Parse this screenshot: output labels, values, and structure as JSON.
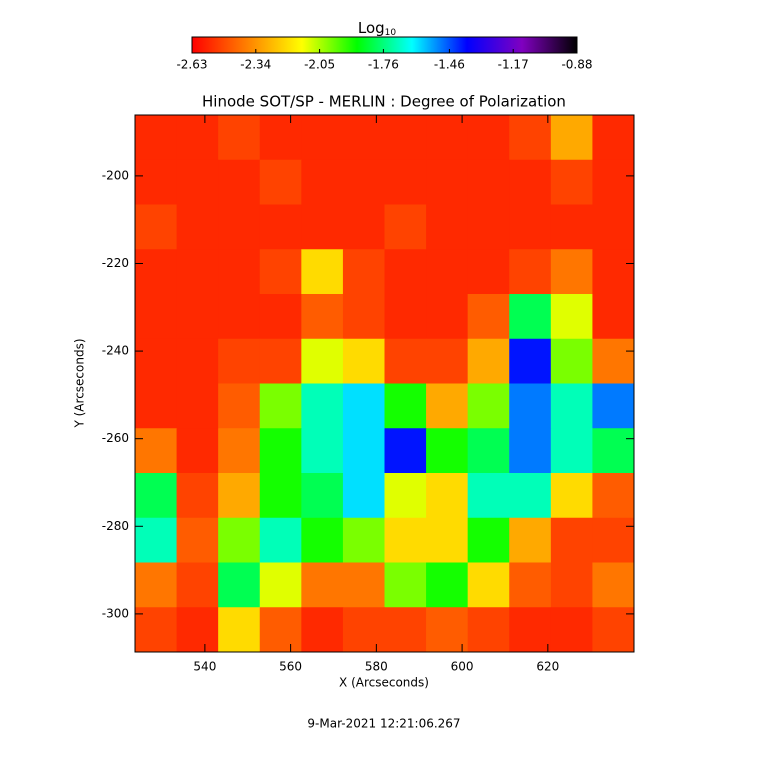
{
  "chart_data": {
    "type": "heatmap",
    "title": "Hinode SOT/SP - MERLIN : Degree of Polarization",
    "x_label": "X (Arcseconds)",
    "y_label": "Y (Arcseconds)",
    "colorbar_label": "Log",
    "colorbar_label_subscript": "10",
    "footer": "9-Mar-2021 12:21:06.267",
    "xlim": [
      523.7,
      640.1
    ],
    "ylim": [
      -308.7,
      -186.1
    ],
    "xticks": [
      540,
      560,
      580,
      600,
      620
    ],
    "yticks": [
      -300,
      -280,
      -260,
      -240,
      -220,
      -200
    ],
    "zlim": [
      -2.63,
      -0.88
    ],
    "zticks": [
      -2.63,
      -2.34,
      -2.05,
      -1.76,
      -1.46,
      -1.17,
      -0.88
    ],
    "colormap": [
      "#ff0000",
      "#ff8000",
      "#ffff00",
      "#00ff00",
      "#00ffff",
      "#0000ff",
      "#8000c0",
      "#000000"
    ],
    "z": [
      [
        -2.55,
        -2.55,
        -2.5,
        -2.55,
        -2.55,
        -2.55,
        -2.55,
        -2.55,
        -2.55,
        -2.5,
        -2.3,
        -2.55
      ],
      [
        -2.55,
        -2.55,
        -2.55,
        -2.5,
        -2.55,
        -2.55,
        -2.55,
        -2.55,
        -2.55,
        -2.55,
        -2.5,
        -2.55
      ],
      [
        -2.5,
        -2.55,
        -2.55,
        -2.55,
        -2.55,
        -2.55,
        -2.5,
        -2.55,
        -2.55,
        -2.55,
        -2.55,
        -2.55
      ],
      [
        -2.55,
        -2.55,
        -2.55,
        -2.5,
        -2.2,
        -2.5,
        -2.55,
        -2.55,
        -2.55,
        -2.5,
        -2.4,
        -2.55
      ],
      [
        -2.55,
        -2.55,
        -2.55,
        -2.55,
        -2.45,
        -2.5,
        -2.55,
        -2.55,
        -2.45,
        -1.8,
        -2.1,
        -2.55
      ],
      [
        -2.55,
        -2.55,
        -2.5,
        -2.5,
        -2.1,
        -2.2,
        -2.5,
        -2.5,
        -2.3,
        -1.4,
        -2.0,
        -2.4
      ],
      [
        -2.55,
        -2.55,
        -2.45,
        -2.0,
        -1.7,
        -1.6,
        -1.9,
        -2.3,
        -2.0,
        -1.5,
        -1.7,
        -1.5
      ],
      [
        -2.4,
        -2.55,
        -2.4,
        -1.9,
        -1.7,
        -1.6,
        -1.4,
        -1.9,
        -1.8,
        -1.5,
        -1.7,
        -1.8
      ],
      [
        -1.8,
        -2.5,
        -2.3,
        -1.9,
        -1.8,
        -1.6,
        -2.1,
        -2.2,
        -1.7,
        -1.7,
        -2.2,
        -2.45
      ],
      [
        -1.7,
        -2.45,
        -2.0,
        -1.7,
        -1.9,
        -2.0,
        -2.2,
        -2.2,
        -1.9,
        -2.3,
        -2.5,
        -2.5
      ],
      [
        -2.4,
        -2.5,
        -1.8,
        -2.1,
        -2.4,
        -2.4,
        -2.0,
        -1.9,
        -2.2,
        -2.45,
        -2.5,
        -2.4
      ],
      [
        -2.5,
        -2.55,
        -2.2,
        -2.45,
        -2.55,
        -2.5,
        -2.5,
        -2.45,
        -2.5,
        -2.55,
        -2.55,
        -2.5
      ]
    ]
  }
}
